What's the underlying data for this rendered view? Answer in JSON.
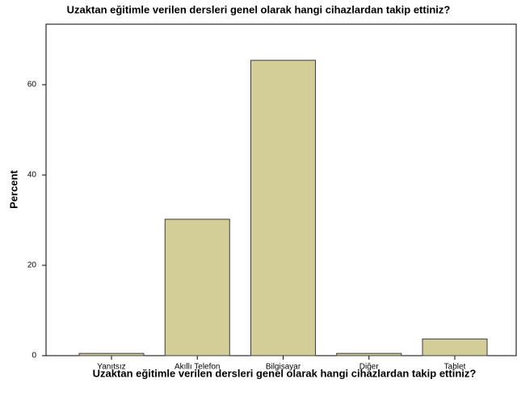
{
  "chart_data": {
    "type": "bar",
    "title": "Uzaktan eğitimle verilen dersleri genel olarak hangi cihazlardan takip ettiniz?",
    "x_label": "Uzaktan eğitimle verilen dersleri genel olarak hangi cihazlardan takip ettiniz?",
    "y_label": "Percent",
    "categories": [
      "Yanıtsız",
      "Akıllı Telefon",
      "Bilgisayar",
      "Diğer",
      "Tablet"
    ],
    "values": [
      0.5,
      30.2,
      65.4,
      0.5,
      3.7
    ],
    "color": "#d3ce97",
    "ylim": [
      0,
      73.4
    ],
    "yticks": [
      0,
      20,
      40,
      60
    ]
  }
}
